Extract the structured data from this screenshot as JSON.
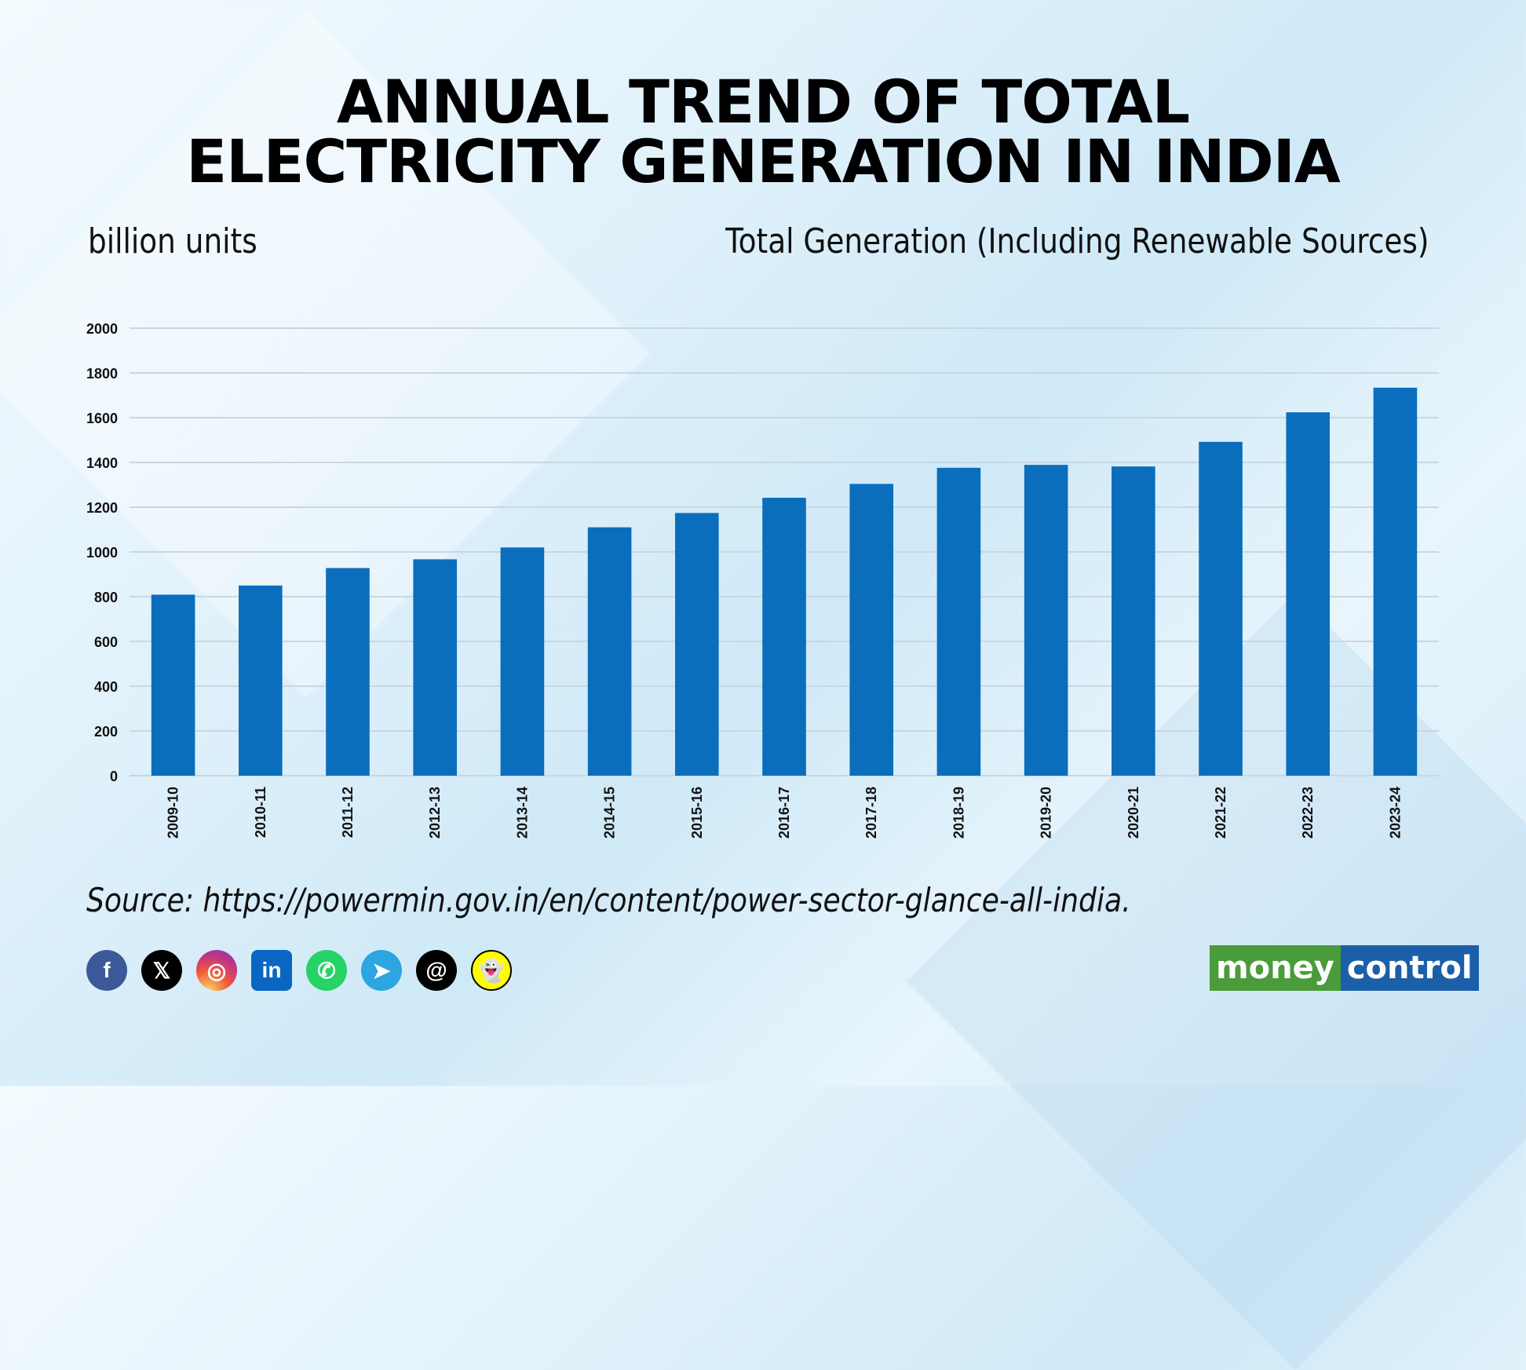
{
  "title_line1": "ANNUAL TREND OF TOTAL",
  "title_line2": "ELECTRICITY GENERATION IN INDIA",
  "source": "Source: https://powermin.gov.in/en/content/power-sector-glance-all-india.",
  "logo": {
    "part1": "money",
    "part2": "control"
  },
  "social_icons": [
    "facebook-icon",
    "x-icon",
    "instagram-icon",
    "linkedin-icon",
    "whatsapp-icon",
    "telegram-icon",
    "threads-icon",
    "snapchat-icon"
  ],
  "colors": {
    "bar": "#0a6ebd",
    "grid": "#c9d7e0"
  },
  "chart_data": {
    "type": "bar",
    "title": "ANNUAL TREND OF TOTAL ELECTRICITY GENERATION IN INDIA",
    "ylabel": "billion units",
    "series_label": "Total Generation (Including Renewable Sources)",
    "categories": [
      "2009-10",
      "2010-11",
      "2011-12",
      "2012-13",
      "2013-14",
      "2014-15",
      "2015-16",
      "2016-17",
      "2017-18",
      "2018-19",
      "2019-20",
      "2020-21",
      "2021-22",
      "2022-23",
      "2023-24"
    ],
    "values": [
      809,
      850,
      928,
      967,
      1020,
      1110,
      1174,
      1242,
      1304,
      1376,
      1389,
      1382,
      1492,
      1624,
      1734
    ],
    "yticks": [
      "0",
      "200",
      "400",
      "600",
      "800",
      "1000",
      "1200",
      "1400",
      "1600",
      "1800",
      "2000"
    ],
    "ylim": [
      0,
      2000
    ],
    "grid": true,
    "legend": "none"
  }
}
